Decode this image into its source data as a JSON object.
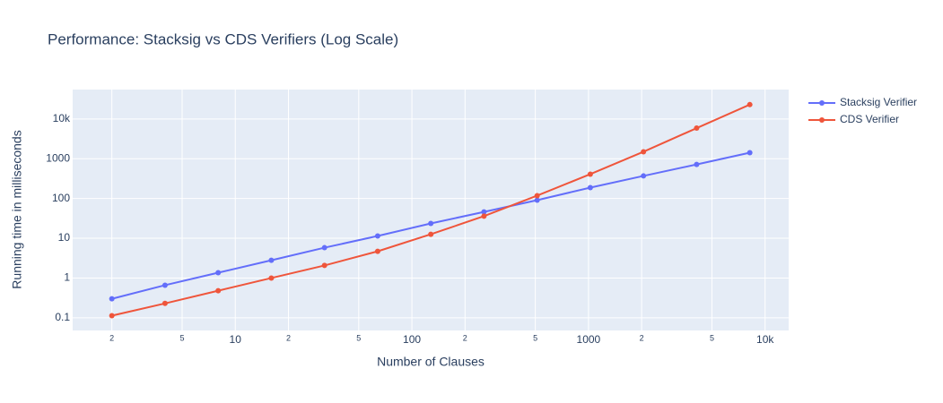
{
  "chart_data": {
    "type": "line",
    "title": "Performance: Stacksig vs CDS Verifiers (Log Scale)",
    "x_label": "Number of Clauses",
    "y_label": "Running time in milliseconds",
    "x": [
      2,
      4,
      8,
      16,
      32,
      64,
      128,
      256,
      512,
      1024,
      2048,
      4096,
      8192
    ],
    "series": [
      {
        "name": "Stacksig Verifier",
        "color": "#636efa",
        "values": [
          0.3,
          0.66,
          1.36,
          2.8,
          5.8,
          11.4,
          23.6,
          46,
          91,
          188,
          370,
          720,
          1420
        ]
      },
      {
        "name": "CDS Verifier",
        "color": "#ef553b",
        "values": [
          0.113,
          0.23,
          0.48,
          1.0,
          2.07,
          4.7,
          12.6,
          36,
          118,
          410,
          1500,
          5900,
          23000
        ]
      }
    ],
    "x_log": true,
    "y_log": true,
    "grid": true,
    "legend": "top-right-outside",
    "xlim": [
      1.2,
      13600
    ],
    "ylim": [
      0.048,
      55000
    ],
    "xticks": [
      2,
      5,
      10,
      {
        "value": 20,
        "label": "2"
      },
      {
        "value": 50,
        "label": "5"
      },
      100,
      {
        "value": 200,
        "label": "2"
      },
      {
        "value": 500,
        "label": "5"
      },
      1000,
      {
        "value": 2000,
        "label": "2"
      },
      {
        "value": 5000,
        "label": "5"
      },
      {
        "value": 10000,
        "label": "10k"
      }
    ],
    "yticks": [
      0.1,
      1,
      10,
      100,
      1000,
      {
        "value": 10000,
        "label": "10k"
      }
    ]
  }
}
